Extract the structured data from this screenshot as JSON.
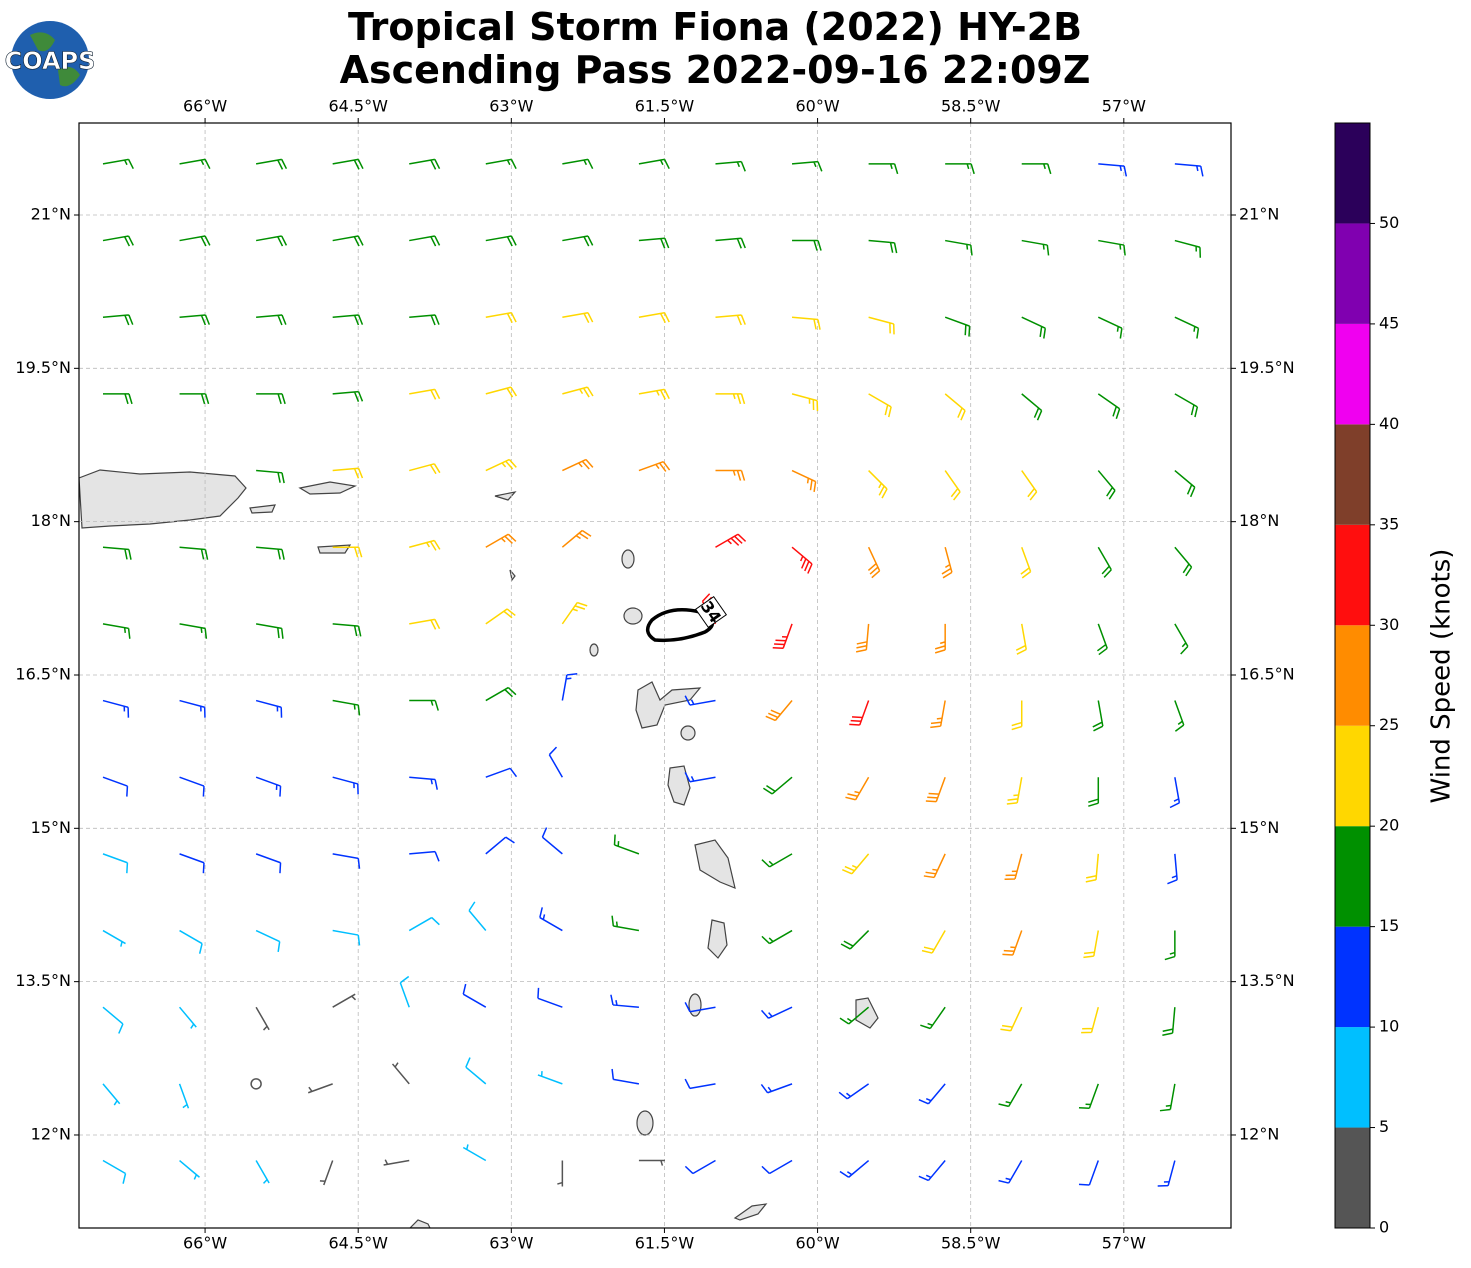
{
  "chart_data": {
    "type": "wind-barbs",
    "title": "Tropical Storm Fiona (2022) HY-2B",
    "subtitle": "Ascending Pass 2022-09-16 22:09Z",
    "logo_text": "COAPS",
    "contour_label": "34",
    "xlim": [
      -67.235,
      -55.95
    ],
    "ylim": [
      11.09,
      21.9
    ],
    "xticks": [
      {
        "value": -66,
        "label": "66°W"
      },
      {
        "value": -64.5,
        "label": "64.5°W"
      },
      {
        "value": -63,
        "label": "63°W"
      },
      {
        "value": -61.5,
        "label": "61.5°W"
      },
      {
        "value": -60,
        "label": "60°W"
      },
      {
        "value": -58.5,
        "label": "58.5°W"
      },
      {
        "value": -57,
        "label": "57°W"
      }
    ],
    "yticks": [
      {
        "value": 21,
        "label": "21°N"
      },
      {
        "value": 19.5,
        "label": "19.5°N"
      },
      {
        "value": 18,
        "label": "18°N"
      },
      {
        "value": 16.5,
        "label": "16.5°N"
      },
      {
        "value": 15,
        "label": "15°N"
      },
      {
        "value": 13.5,
        "label": "13.5°N"
      },
      {
        "value": 12,
        "label": "12°N"
      }
    ],
    "grid": true,
    "barbs": {
      "lons": [
        -67,
        -66.25,
        -65.5,
        -64.75,
        -64,
        -63.25,
        -62.5,
        -61.75,
        -61,
        -60.25,
        -59.5,
        -58.75,
        -58,
        -57.25,
        -56.5
      ],
      "lats": [
        21.5,
        20.75,
        20,
        19.25,
        18.5,
        17.75,
        17,
        16.25,
        15.5,
        14.75,
        14,
        13.25,
        12.5,
        11.75
      ],
      "speed": [
        [
          17,
          17,
          18,
          18,
          18,
          17,
          17,
          17,
          17,
          17,
          17,
          16,
          16,
          14,
          14
        ],
        [
          18,
          18,
          18,
          18,
          18,
          18,
          19,
          19,
          18,
          18,
          18,
          17,
          17,
          16,
          16
        ],
        [
          18,
          18,
          18,
          18,
          19,
          20,
          21,
          22,
          22,
          21,
          20,
          19,
          18,
          17,
          17
        ],
        [
          18,
          18,
          18,
          19,
          21,
          22,
          23,
          24,
          24,
          23,
          22,
          21,
          19,
          18,
          18
        ],
        [
          null,
          null,
          18,
          20,
          22,
          24,
          26,
          27,
          27,
          26,
          24,
          22,
          20,
          18,
          18
        ],
        [
          18,
          18,
          19,
          21,
          23,
          25,
          26,
          null,
          33,
          33,
          28,
          25,
          22,
          19,
          18
        ],
        [
          15,
          17,
          18,
          19,
          20,
          22,
          24,
          null,
          34,
          33,
          29,
          26,
          22,
          19,
          17
        ],
        [
          13,
          14,
          14,
          15,
          16,
          18,
          13,
          null,
          14,
          28,
          32,
          27,
          22,
          18,
          15
        ],
        [
          12,
          12,
          13,
          13,
          13,
          12,
          12,
          null,
          13,
          19,
          27,
          28,
          24,
          19,
          14
        ],
        [
          9,
          10,
          11,
          12,
          12,
          11,
          10,
          15,
          null,
          17,
          24,
          27,
          25,
          20,
          14
        ],
        [
          7,
          8,
          9,
          9,
          8,
          8,
          13,
          16,
          null,
          17,
          18,
          22,
          25,
          22,
          15
        ],
        [
          8,
          6,
          4,
          4,
          8,
          10,
          12,
          14,
          12,
          14,
          16,
          17,
          21,
          21,
          18
        ],
        [
          7,
          5,
          2,
          3,
          4,
          8,
          7,
          10,
          11,
          13,
          14,
          14,
          15,
          17,
          17
        ],
        [
          8,
          7,
          5,
          4,
          3,
          7,
          4,
          3,
          10,
          12,
          13,
          13,
          13,
          12,
          14
        ]
      ],
      "direction": [
        [
          80,
          80,
          80,
          80,
          80,
          80,
          80,
          80,
          85,
          85,
          90,
          90,
          90,
          95,
          95
        ],
        [
          80,
          80,
          80,
          80,
          80,
          80,
          80,
          85,
          85,
          90,
          95,
          100,
          100,
          100,
          105
        ],
        [
          85,
          85,
          85,
          85,
          85,
          80,
          80,
          80,
          85,
          95,
          105,
          110,
          115,
          115,
          115
        ],
        [
          90,
          90,
          90,
          85,
          80,
          75,
          75,
          80,
          90,
          105,
          120,
          130,
          130,
          125,
          120
        ],
        [
          null,
          null,
          95,
          85,
          75,
          65,
          65,
          70,
          90,
          115,
          135,
          145,
          145,
          140,
          130
        ],
        [
          95,
          95,
          95,
          90,
          75,
          60,
          50,
          null,
          60,
          130,
          155,
          165,
          160,
          150,
          140
        ],
        [
          100,
          100,
          100,
          95,
          80,
          55,
          35,
          null,
          330,
          200,
          185,
          180,
          170,
          160,
          150
        ],
        [
          105,
          105,
          105,
          100,
          90,
          60,
          10,
          null,
          260,
          220,
          200,
          190,
          180,
          170,
          160
        ],
        [
          110,
          110,
          110,
          105,
          95,
          70,
          330,
          null,
          260,
          230,
          210,
          200,
          190,
          180,
          170
        ],
        [
          110,
          110,
          110,
          100,
          85,
          50,
          310,
          290,
          null,
          240,
          220,
          205,
          195,
          185,
          175
        ],
        [
          120,
          120,
          115,
          100,
          60,
          320,
          300,
          280,
          null,
          240,
          225,
          210,
          200,
          190,
          180
        ],
        [
          130,
          140,
          150,
          60,
          340,
          300,
          290,
          275,
          260,
          245,
          230,
          215,
          205,
          195,
          185
        ],
        [
          140,
          160,
          200,
          250,
          320,
          310,
          290,
          280,
          260,
          250,
          235,
          220,
          210,
          200,
          190
        ],
        [
          120,
          130,
          150,
          200,
          260,
          300,
          180,
          90,
          240,
          240,
          230,
          220,
          210,
          200,
          195
        ]
      ]
    },
    "colorbar": {
      "label": "Wind Speed (knots)",
      "clim": [
        0,
        55
      ],
      "bounds": [
        0,
        5,
        10,
        15,
        20,
        25,
        30,
        35,
        40,
        45,
        50,
        55
      ],
      "colors": [
        "#555555",
        "#00bfff",
        "#0033ff",
        "#009000",
        "#ffd700",
        "#ff8c00",
        "#ff0e0e",
        "#7f3f2a",
        "#f000f0",
        "#8000b0",
        "#2b005a"
      ],
      "ticks": [
        0,
        5,
        10,
        15,
        20,
        25,
        30,
        35,
        40,
        45,
        50
      ]
    }
  }
}
